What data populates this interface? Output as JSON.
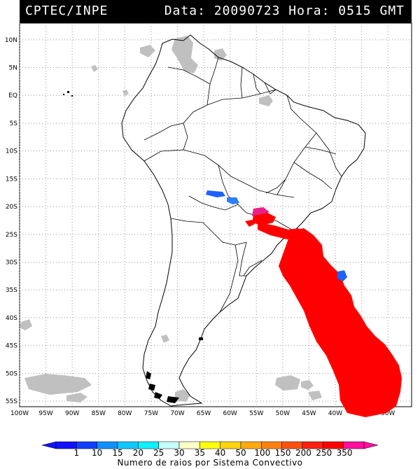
{
  "header": {
    "source": "CPTEC/INPE",
    "datetime": "Data: 20090723 Hora: 0515 GMT"
  },
  "map": {
    "lat_labels": [
      "10N",
      "5N",
      "EQ",
      "5S",
      "10S",
      "15S",
      "20S",
      "25S",
      "30S",
      "35S",
      "40S",
      "45S",
      "50S",
      "55S"
    ],
    "lat_values": [
      10,
      5,
      0,
      -5,
      -10,
      -15,
      -20,
      -25,
      -30,
      -35,
      -40,
      -45,
      -50,
      -55
    ],
    "lon_labels": [
      "100W",
      "95W",
      "90W",
      "85W",
      "80W",
      "75W",
      "70W",
      "65W",
      "60W",
      "55W",
      "50W",
      "45W",
      "40W",
      "35W",
      "30W"
    ],
    "lon_values": [
      -100,
      -95,
      -90,
      -85,
      -80,
      -75,
      -70,
      -65,
      -60,
      -55,
      -50,
      -45,
      -40,
      -35,
      -30
    ],
    "extent": {
      "lon_min": -100,
      "lon_max": -25.5,
      "lat_min": -56,
      "lat_max": 13
    },
    "land_color": "#000000",
    "cloud_color": "#c0c0c0",
    "convective_systems": [
      {
        "name": "system-sw-paraguay-blue",
        "lon": -63.5,
        "lat": -18.3,
        "color": "#1e60ff"
      },
      {
        "name": "system-bolivia-blue",
        "lon": -60.0,
        "lat": -19.1,
        "color": "#2a80ff"
      },
      {
        "name": "system-parana-magenta",
        "lon": -53.9,
        "lat": -21.2,
        "color": "#e8208a"
      },
      {
        "name": "system-south-brazil-red",
        "lon": -47.5,
        "lat": -24.5,
        "color": "#ff0000"
      },
      {
        "name": "system-atlantic-red",
        "lon": -33.0,
        "lat": -44.0,
        "color": "#ff0000"
      },
      {
        "name": "system-atlantic-blue",
        "lon": -38.5,
        "lat": -32.5,
        "color": "#2060ff"
      }
    ]
  },
  "colorbar": {
    "labels": [
      "1",
      "10",
      "15",
      "20",
      "25",
      "30",
      "35",
      "40",
      "50",
      "100",
      "150",
      "200",
      "250",
      "350"
    ],
    "colors": [
      "#1010ff",
      "#1040ff",
      "#1090ff",
      "#10c8ff",
      "#10f0ff",
      "#c8ffff",
      "#ffffc8",
      "#ffff10",
      "#ffd210",
      "#ffaa10",
      "#ff8010",
      "#ff5010",
      "#ff2010",
      "#ff0000",
      "#ff10a0"
    ],
    "caption": "Numero de raios por Sistema Convectivo"
  }
}
